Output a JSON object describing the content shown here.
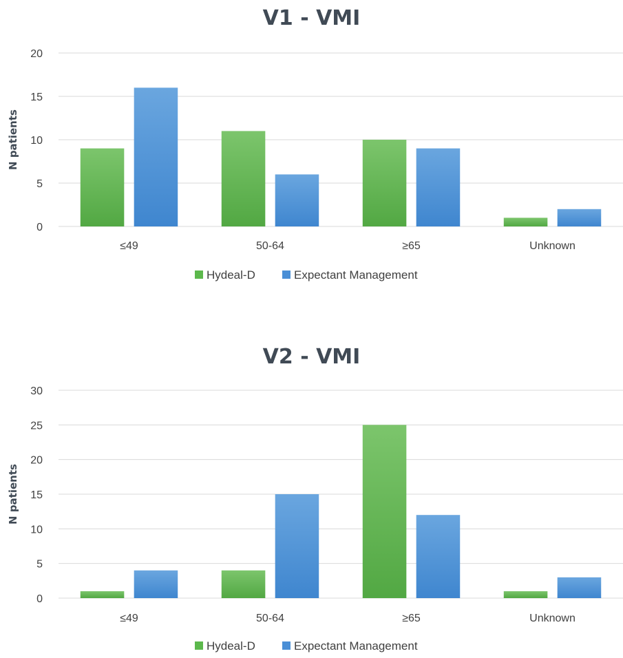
{
  "colors": {
    "hydeal": "#5cb84c",
    "expectant": "#4a8fd6",
    "grid": "#d9d9d9",
    "title": "#404a55"
  },
  "chart_data": [
    {
      "type": "bar",
      "title": "V1 - VMI",
      "ylabel": "N patients",
      "xlabel": "",
      "categories": [
        "≤49",
        "50-64",
        "≥65",
        "Unknown"
      ],
      "yticks": [
        0,
        5,
        10,
        15,
        20
      ],
      "ylim": [
        0,
        20
      ],
      "grid": true,
      "legend_position": "bottom",
      "series": [
        {
          "name": "Hydeal-D",
          "color": "#5cb84c",
          "values": [
            9,
            11,
            10,
            1
          ]
        },
        {
          "name": "Expectant Management",
          "color": "#4a8fd6",
          "values": [
            16,
            6,
            9,
            2
          ]
        }
      ]
    },
    {
      "type": "bar",
      "title": "V2 - VMI",
      "ylabel": "N patients",
      "xlabel": "",
      "categories": [
        "≤49",
        "50-64",
        "≥65",
        "Unknown"
      ],
      "yticks": [
        0,
        5,
        10,
        15,
        20,
        25,
        30
      ],
      "ylim": [
        0,
        30
      ],
      "grid": true,
      "legend_position": "bottom",
      "series": [
        {
          "name": "Hydeal-D",
          "color": "#5cb84c",
          "values": [
            1,
            4,
            25,
            1
          ]
        },
        {
          "name": "Expectant Management",
          "color": "#4a8fd6",
          "values": [
            4,
            15,
            12,
            3
          ]
        }
      ]
    }
  ]
}
